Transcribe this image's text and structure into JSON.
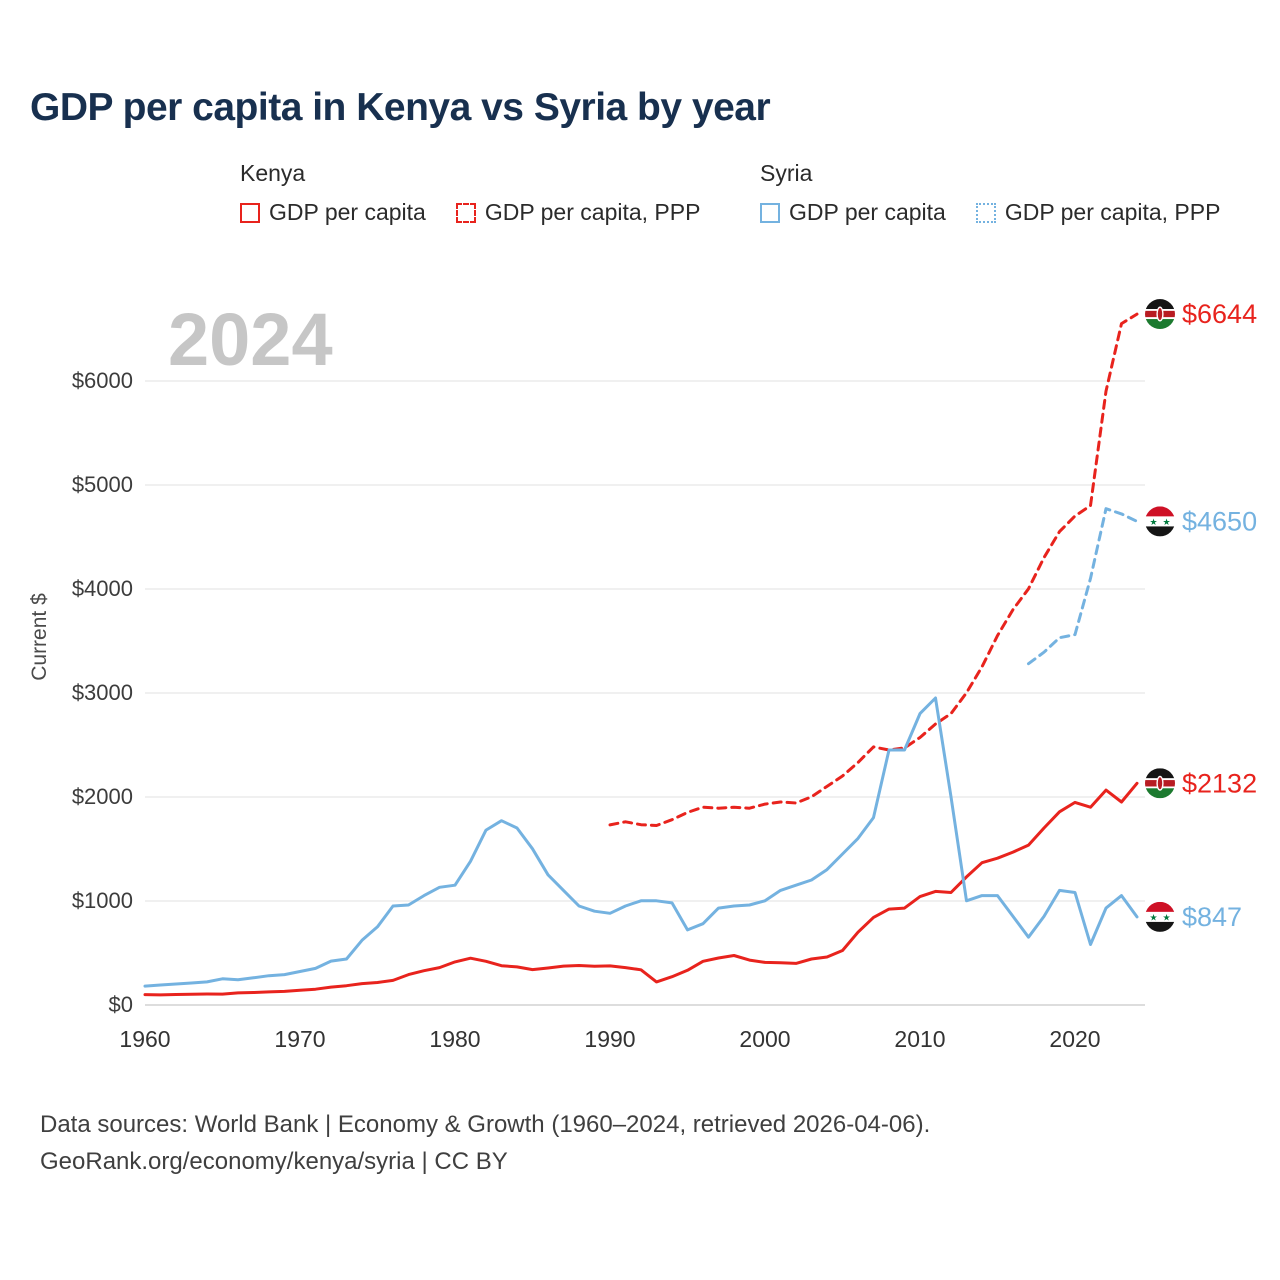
{
  "title": "GDP per capita in Kenya vs Syria by year",
  "watermark": "2024",
  "legend": {
    "groups": [
      {
        "name": "Kenya",
        "items": [
          {
            "label": "GDP per capita",
            "style": "red-solid",
            "color": "#e8231d"
          },
          {
            "label": "GDP per capita, PPP",
            "style": "red-dashed",
            "color": "#e8231d"
          }
        ]
      },
      {
        "name": "Syria",
        "items": [
          {
            "label": "GDP per capita",
            "style": "blue-solid",
            "color": "#74b2e0"
          },
          {
            "label": "GDP per capita, PPP",
            "style": "blue-dotted",
            "color": "#74b2e0"
          }
        ]
      }
    ]
  },
  "footer": {
    "line1": "Data sources: World Bank | Economy & Growth (1960–2024, retrieved 2026-04-06).",
    "line2": "GeoRank.org/economy/kenya/syria | CC BY"
  },
  "chart_data": {
    "type": "line",
    "title": "GDP per capita in Kenya vs Syria by year",
    "xlabel": "",
    "ylabel": "Current $",
    "xlim": [
      1960,
      2024
    ],
    "ylim": [
      0,
      6683
    ],
    "grid": "horizontal",
    "x_ticks": [
      {
        "value": 1960,
        "label": "1960"
      },
      {
        "value": 1970,
        "label": "1970"
      },
      {
        "value": 1980,
        "label": "1980"
      },
      {
        "value": 1990,
        "label": "1990"
      },
      {
        "value": 2000,
        "label": "2000"
      },
      {
        "value": 2010,
        "label": "2010"
      },
      {
        "value": 2020,
        "label": "2020"
      }
    ],
    "y_ticks": [
      {
        "value": 0,
        "label": "$0"
      },
      {
        "value": 1000,
        "label": "$1000"
      },
      {
        "value": 2000,
        "label": "$2000"
      },
      {
        "value": 3000,
        "label": "$3000"
      },
      {
        "value": 4000,
        "label": "$4000"
      },
      {
        "value": 5000,
        "label": "$5000"
      },
      {
        "value": 6000,
        "label": "$6000"
      }
    ],
    "series": [
      {
        "id": "kenya-gdp",
        "name": "Kenya GDP per capita",
        "color": "#e8231d",
        "dash": "solid",
        "flag": "kenya",
        "end_label": "$2132",
        "points": [
          [
            1960,
            100
          ],
          [
            1961,
            97
          ],
          [
            1962,
            101
          ],
          [
            1963,
            104
          ],
          [
            1964,
            106
          ],
          [
            1965,
            105
          ],
          [
            1966,
            116
          ],
          [
            1967,
            120
          ],
          [
            1968,
            126
          ],
          [
            1969,
            131
          ],
          [
            1970,
            142
          ],
          [
            1971,
            152
          ],
          [
            1972,
            172
          ],
          [
            1973,
            186
          ],
          [
            1974,
            206
          ],
          [
            1975,
            216
          ],
          [
            1976,
            237
          ],
          [
            1977,
            292
          ],
          [
            1978,
            330
          ],
          [
            1979,
            360
          ],
          [
            1980,
            414
          ],
          [
            1981,
            450
          ],
          [
            1982,
            420
          ],
          [
            1983,
            378
          ],
          [
            1984,
            366
          ],
          [
            1985,
            340
          ],
          [
            1986,
            356
          ],
          [
            1987,
            374
          ],
          [
            1988,
            380
          ],
          [
            1989,
            372
          ],
          [
            1990,
            376
          ],
          [
            1991,
            360
          ],
          [
            1992,
            338
          ],
          [
            1993,
            222
          ],
          [
            1994,
            272
          ],
          [
            1995,
            334
          ],
          [
            1996,
            420
          ],
          [
            1997,
            452
          ],
          [
            1998,
            476
          ],
          [
            1999,
            432
          ],
          [
            2000,
            410
          ],
          [
            2001,
            406
          ],
          [
            2002,
            400
          ],
          [
            2003,
            442
          ],
          [
            2004,
            462
          ],
          [
            2005,
            524
          ],
          [
            2006,
            700
          ],
          [
            2007,
            842
          ],
          [
            2008,
            922
          ],
          [
            2009,
            932
          ],
          [
            2010,
            1042
          ],
          [
            2011,
            1092
          ],
          [
            2012,
            1082
          ],
          [
            2013,
            1232
          ],
          [
            2014,
            1368
          ],
          [
            2015,
            1412
          ],
          [
            2016,
            1470
          ],
          [
            2017,
            1538
          ],
          [
            2018,
            1702
          ],
          [
            2019,
            1858
          ],
          [
            2020,
            1948
          ],
          [
            2021,
            1902
          ],
          [
            2022,
            2066
          ],
          [
            2023,
            1952
          ],
          [
            2024,
            2132
          ]
        ]
      },
      {
        "id": "kenya-gdp-ppp",
        "name": "Kenya GDP per capita, PPP",
        "color": "#e8231d",
        "dash": "dashed",
        "flag": "kenya",
        "end_label": "$6644",
        "points": [
          [
            1990,
            1732
          ],
          [
            1991,
            1762
          ],
          [
            1992,
            1734
          ],
          [
            1993,
            1726
          ],
          [
            1994,
            1782
          ],
          [
            1995,
            1852
          ],
          [
            1996,
            1902
          ],
          [
            1997,
            1892
          ],
          [
            1998,
            1902
          ],
          [
            1999,
            1892
          ],
          [
            2000,
            1932
          ],
          [
            2001,
            1952
          ],
          [
            2002,
            1942
          ],
          [
            2003,
            2002
          ],
          [
            2004,
            2102
          ],
          [
            2005,
            2202
          ],
          [
            2006,
            2332
          ],
          [
            2007,
            2482
          ],
          [
            2008,
            2452
          ],
          [
            2009,
            2472
          ],
          [
            2010,
            2572
          ],
          [
            2011,
            2702
          ],
          [
            2012,
            2802
          ],
          [
            2013,
            3002
          ],
          [
            2014,
            3252
          ],
          [
            2015,
            3552
          ],
          [
            2016,
            3802
          ],
          [
            2017,
            4002
          ],
          [
            2018,
            4302
          ],
          [
            2019,
            4552
          ],
          [
            2020,
            4702
          ],
          [
            2021,
            4802
          ],
          [
            2022,
            5902
          ],
          [
            2023,
            6552
          ],
          [
            2024,
            6644
          ]
        ]
      },
      {
        "id": "syria-gdp",
        "name": "Syria GDP per capita",
        "color": "#74b2e0",
        "dash": "solid",
        "flag": "syria",
        "end_label": "$847",
        "points": [
          [
            1960,
            182
          ],
          [
            1961,
            192
          ],
          [
            1962,
            202
          ],
          [
            1963,
            212
          ],
          [
            1964,
            222
          ],
          [
            1965,
            252
          ],
          [
            1966,
            242
          ],
          [
            1967,
            262
          ],
          [
            1968,
            282
          ],
          [
            1969,
            292
          ],
          [
            1970,
            322
          ],
          [
            1971,
            352
          ],
          [
            1972,
            422
          ],
          [
            1973,
            442
          ],
          [
            1974,
            622
          ],
          [
            1975,
            752
          ],
          [
            1976,
            952
          ],
          [
            1977,
            962
          ],
          [
            1978,
            1052
          ],
          [
            1979,
            1132
          ],
          [
            1980,
            1152
          ],
          [
            1981,
            1382
          ],
          [
            1982,
            1682
          ],
          [
            1983,
            1772
          ],
          [
            1984,
            1702
          ],
          [
            1985,
            1502
          ],
          [
            1986,
            1252
          ],
          [
            1987,
            1102
          ],
          [
            1988,
            952
          ],
          [
            1989,
            902
          ],
          [
            1990,
            882
          ],
          [
            1991,
            952
          ],
          [
            1992,
            1002
          ],
          [
            1993,
            1002
          ],
          [
            1994,
            982
          ],
          [
            1995,
            722
          ],
          [
            1996,
            782
          ],
          [
            1997,
            932
          ],
          [
            1998,
            952
          ],
          [
            1999,
            962
          ],
          [
            2000,
            1002
          ],
          [
            2001,
            1102
          ],
          [
            2002,
            1152
          ],
          [
            2003,
            1202
          ],
          [
            2004,
            1302
          ],
          [
            2005,
            1452
          ],
          [
            2006,
            1602
          ],
          [
            2007,
            1802
          ],
          [
            2008,
            2452
          ],
          [
            2009,
            2452
          ],
          [
            2010,
            2802
          ],
          [
            2011,
            2952
          ],
          [
            2012,
            2002
          ],
          [
            2013,
            1002
          ],
          [
            2014,
            1052
          ],
          [
            2015,
            1052
          ],
          [
            2016,
            852
          ],
          [
            2017,
            652
          ],
          [
            2018,
            852
          ],
          [
            2019,
            1102
          ],
          [
            2020,
            1082
          ],
          [
            2021,
            582
          ],
          [
            2022,
            932
          ],
          [
            2023,
            1052
          ],
          [
            2024,
            847
          ]
        ]
      },
      {
        "id": "syria-gdp-ppp",
        "name": "Syria GDP per capita, PPP",
        "color": "#74b2e0",
        "dash": "dashed",
        "flag": "syria",
        "end_label": "$4650",
        "points": [
          [
            2017,
            3282
          ],
          [
            2018,
            3392
          ],
          [
            2019,
            3532
          ],
          [
            2020,
            3562
          ],
          [
            2021,
            4102
          ],
          [
            2022,
            4772
          ],
          [
            2023,
            4722
          ],
          [
            2024,
            4650
          ]
        ]
      }
    ]
  }
}
